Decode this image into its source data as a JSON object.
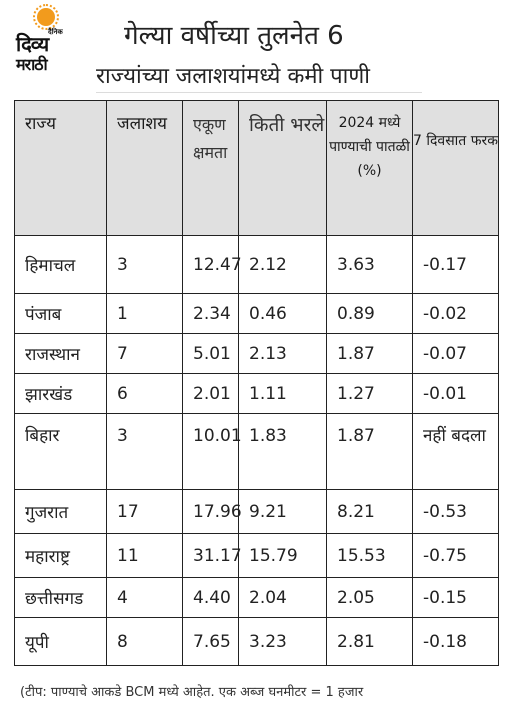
{
  "logo": {
    "small_text": "दैनिक",
    "line1": "दिव्य",
    "line2": "मराठी"
  },
  "title": {
    "line1": "गेल्या वर्षीच्या तुलनेत 6",
    "line2": "राज्यांच्या जलाशयांमध्ये कमी पाणी"
  },
  "table": {
    "headers": {
      "state": "राज्य",
      "reservoir": "जलाशय",
      "capacity": "एकूण क्षमता",
      "filled": "किती भरले",
      "level_2024": "2024 मध्ये पाण्याची पातळी (%)",
      "diff_7days": "7 दिवसात फरक"
    },
    "rows": [
      {
        "state": "हिमाचल",
        "reservoir": "3",
        "capacity": "12.47",
        "filled": "2.12",
        "level": "3.63",
        "diff": "-0.17"
      },
      {
        "state": "पंजाब",
        "reservoir": "1",
        "capacity": "2.34",
        "filled": "0.46",
        "level": "0.89",
        "diff": "-0.02"
      },
      {
        "state": "राजस्थान",
        "reservoir": "7",
        "capacity": "5.01",
        "filled": "2.13",
        "level": "1.87",
        "diff": "-0.07"
      },
      {
        "state": "झारखंड",
        "reservoir": "6",
        "capacity": "2.01",
        "filled": "1.11",
        "level": "1.27",
        "diff": "-0.01"
      },
      {
        "state": "बिहार",
        "reservoir": "3",
        "capacity": "10.01",
        "filled": "1.83",
        "level": "1.87",
        "diff": "नहीं बदला"
      },
      {
        "state": "गुजरात",
        "reservoir": "17",
        "capacity": "17.96",
        "filled": "9.21",
        "level": "8.21",
        "diff": "-0.53"
      },
      {
        "state": "महाराष्ट्र",
        "reservoir": "11",
        "capacity": "31.17",
        "filled": "15.79",
        "level": "15.53",
        "diff": "-0.75"
      },
      {
        "state": "छत्तीसगड",
        "reservoir": "4",
        "capacity": "4.40",
        "filled": "2.04",
        "level": "2.05",
        "diff": "-0.15"
      },
      {
        "state": "यूपी",
        "reservoir": "8",
        "capacity": "7.65",
        "filled": "3.23",
        "level": "2.81",
        "diff": "-0.18"
      }
    ]
  },
  "note": "(टीप: पाण्याचे आकडे BCM मध्ये आहेत. एक अब्ज घनमीटर = 1 हजार"
}
